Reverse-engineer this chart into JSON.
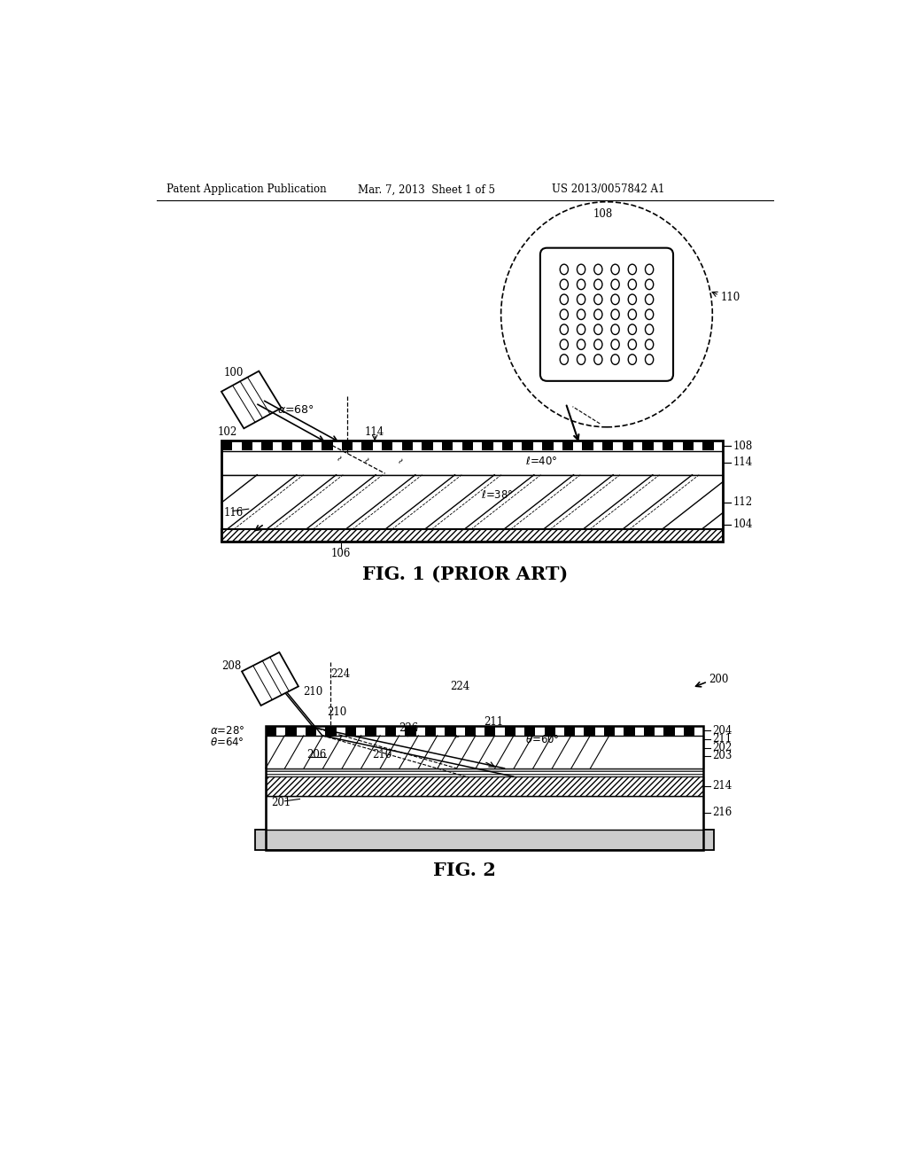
{
  "bg_color": "#ffffff",
  "header_left": "Patent Application Publication",
  "header_mid": "Mar. 7, 2013  Sheet 1 of 5",
  "header_right": "US 2013/0057842 A1",
  "fig1_caption": "FIG. 1 (PRIOR ART)",
  "fig2_caption": "FIG. 2"
}
